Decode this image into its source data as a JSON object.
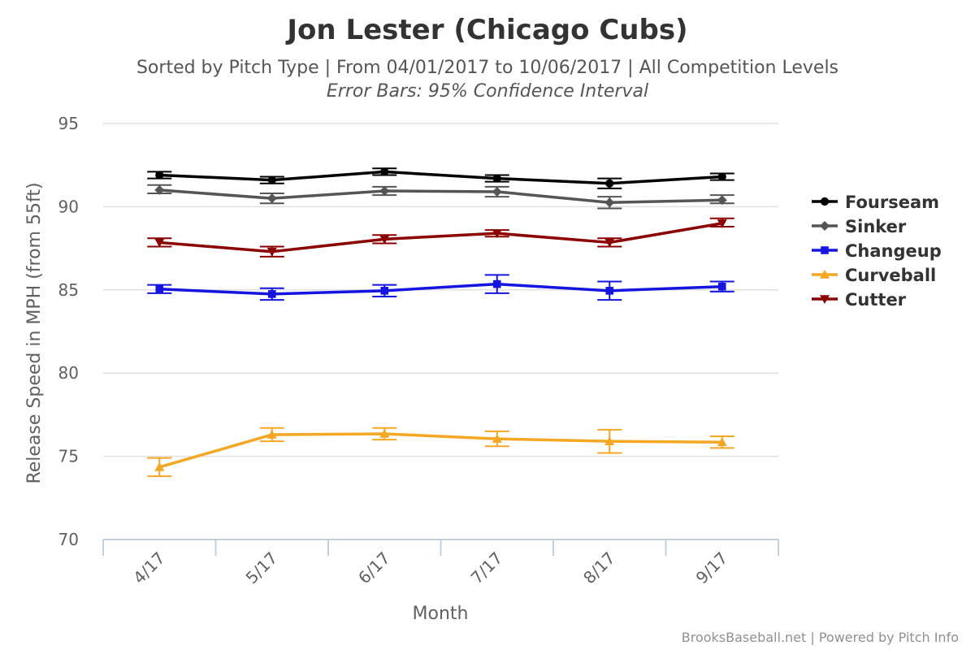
{
  "chart_data": {
    "type": "line",
    "title": "Jon Lester (Chicago Cubs)",
    "subtitle": "Sorted by Pitch Type | From 04/01/2017 to 10/06/2017 | All Competition Levels",
    "subtitle2": "Error Bars: 95% Confidence Interval",
    "xlabel": "Month",
    "ylabel": "Release Speed in MPH (from 55ft)",
    "categories": [
      "4/17",
      "5/17",
      "6/17",
      "7/17",
      "8/17",
      "9/17"
    ],
    "ylim": [
      70,
      95
    ],
    "yticks": [
      70,
      75,
      80,
      85,
      90,
      95
    ],
    "grid": true,
    "legend_position": "right",
    "credits": "BrooksBaseball.net | Powered by Pitch Info",
    "series": [
      {
        "name": "Fourseam",
        "color": "#000000",
        "marker": "circle",
        "values": [
          91.9,
          91.6,
          92.1,
          91.7,
          91.4,
          91.8
        ],
        "err_low": [
          91.7,
          91.4,
          91.9,
          91.5,
          91.1,
          91.6
        ],
        "err_high": [
          92.1,
          91.8,
          92.3,
          91.9,
          91.7,
          92.0
        ]
      },
      {
        "name": "Sinker",
        "color": "#555555",
        "marker": "diamond",
        "values": [
          91.0,
          90.5,
          90.95,
          90.9,
          90.25,
          90.4
        ],
        "err_low": [
          90.8,
          90.2,
          90.7,
          90.6,
          89.9,
          90.2
        ],
        "err_high": [
          91.3,
          90.8,
          91.2,
          91.2,
          90.6,
          90.7
        ]
      },
      {
        "name": "Changeup",
        "color": "#1515e0",
        "marker": "square",
        "values": [
          85.05,
          84.75,
          84.95,
          85.35,
          84.95,
          85.2
        ],
        "err_low": [
          84.8,
          84.4,
          84.6,
          84.8,
          84.4,
          84.9
        ],
        "err_high": [
          85.3,
          85.1,
          85.3,
          85.9,
          85.5,
          85.5
        ]
      },
      {
        "name": "Curveball",
        "color": "#f5a623",
        "marker": "triangle",
        "values": [
          74.35,
          76.3,
          76.35,
          76.05,
          75.9,
          75.85
        ],
        "err_low": [
          73.8,
          75.9,
          76.0,
          75.6,
          75.2,
          75.5
        ],
        "err_high": [
          74.9,
          76.7,
          76.7,
          76.5,
          76.6,
          76.2
        ]
      },
      {
        "name": "Cutter",
        "color": "#8b0000",
        "marker": "triangle-down",
        "values": [
          87.85,
          87.3,
          88.05,
          88.4,
          87.85,
          89.0
        ],
        "err_low": [
          87.6,
          87.0,
          87.8,
          88.2,
          87.6,
          88.8
        ],
        "err_high": [
          88.1,
          87.6,
          88.3,
          88.6,
          88.1,
          89.3
        ]
      }
    ]
  }
}
